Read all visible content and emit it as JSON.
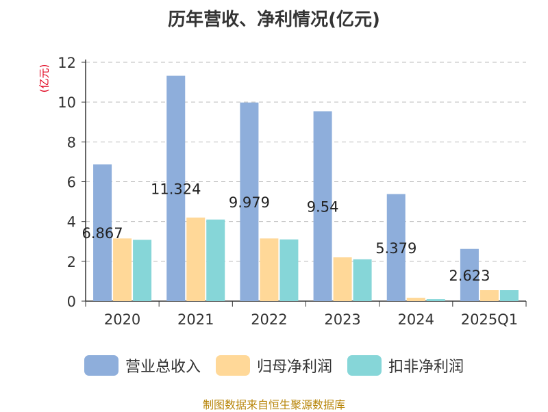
{
  "chart_data": {
    "type": "bar",
    "title": "历年营收、净利情况(亿元)",
    "ylabel": "(亿元)",
    "xlabel": "",
    "ylim": [
      0,
      12
    ],
    "yticks": [
      0,
      2,
      4,
      6,
      8,
      10,
      12
    ],
    "grid": true,
    "legend_position": "bottom",
    "categories": [
      "2020",
      "2021",
      "2022",
      "2023",
      "2024",
      "2025Q1"
    ],
    "series": [
      {
        "name": "营业总收入",
        "color": "#8eaedb",
        "values": [
          6.867,
          11.324,
          9.979,
          9.54,
          5.379,
          2.623
        ],
        "labels": [
          "6.867",
          "11.324",
          "9.979",
          "9.54",
          "5.379",
          "2.623"
        ]
      },
      {
        "name": "归母净利润",
        "color": "#ffd898",
        "values": [
          3.15,
          4.2,
          3.15,
          2.2,
          0.17,
          0.55
        ]
      },
      {
        "name": "扣非净利润",
        "color": "#86d6d8",
        "values": [
          3.08,
          4.1,
          3.1,
          2.1,
          0.1,
          0.55
        ]
      }
    ]
  },
  "source": "制图数据来自恒生聚源数据库"
}
